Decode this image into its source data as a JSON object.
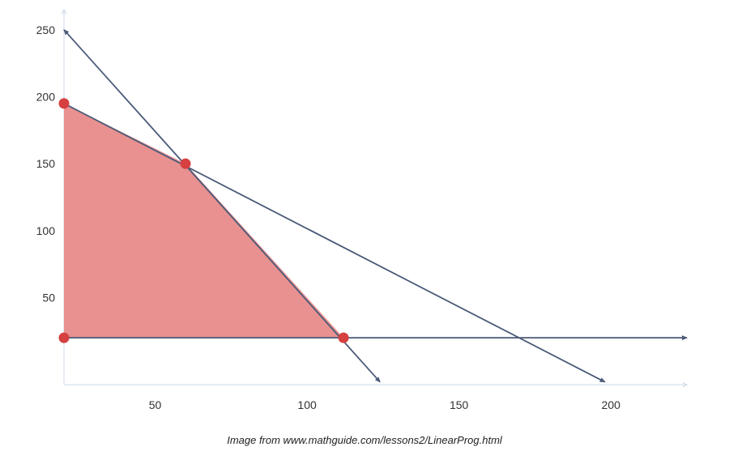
{
  "chart_data": {
    "type": "line",
    "xlim": [
      20,
      225
    ],
    "ylim": [
      -15,
      265
    ],
    "x_ticks": [
      50,
      100,
      150,
      200
    ],
    "y_ticks": [
      50,
      100,
      150,
      200,
      250
    ],
    "grid": false,
    "colors": {
      "axis": "#dde6ef",
      "line": "#4a5a78",
      "region_fill": "#e89190",
      "vertex": "#d64040"
    },
    "region": [
      [
        20,
        20
      ],
      [
        20,
        195
      ],
      [
        60,
        150
      ],
      [
        112,
        20
      ]
    ],
    "vertices": [
      [
        20,
        20
      ],
      [
        20,
        195
      ],
      [
        60,
        150
      ],
      [
        112,
        20
      ]
    ],
    "lines": [
      {
        "from": [
          20,
          250
        ],
        "to": [
          124,
          -13
        ]
      },
      {
        "from": [
          20,
          195
        ],
        "to": [
          198,
          -13
        ]
      },
      {
        "from": [
          20,
          20
        ],
        "to": [
          225,
          20
        ]
      }
    ]
  },
  "caption": "Image from www.mathguide.com/lessons2/LinearProg.html"
}
